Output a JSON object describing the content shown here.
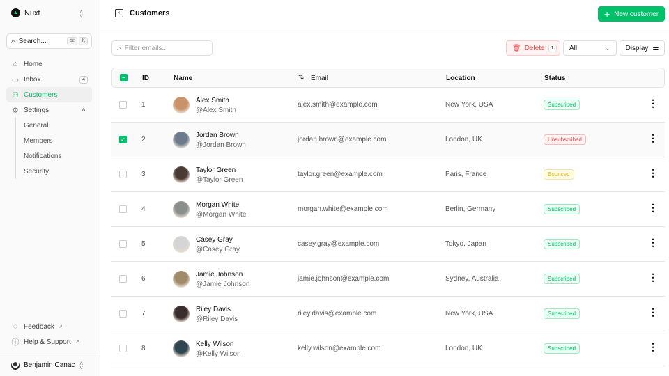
{
  "sidebar": {
    "brand": "Nuxt",
    "search": "Search...",
    "kbd": [
      "⌘",
      "K"
    ],
    "items": [
      {
        "label": "Home",
        "icon": "home-icon"
      },
      {
        "label": "Inbox",
        "icon": "inbox-icon",
        "badge": "4"
      },
      {
        "label": "Customers",
        "icon": "users-icon",
        "active": true
      },
      {
        "label": "Settings",
        "icon": "gear-icon"
      }
    ],
    "settings_children": [
      "General",
      "Members",
      "Notifications",
      "Security"
    ],
    "footer": [
      "Feedback",
      "Help & Support"
    ],
    "user": "Benjamin Canac"
  },
  "header": {
    "title": "Customers",
    "new_button": "New customer"
  },
  "toolbar": {
    "filter_placeholder": "Filter emails...",
    "delete": "Delete",
    "delete_count": "1",
    "status_select": "All",
    "display": "Display"
  },
  "table": {
    "columns": [
      "ID",
      "Name",
      "Email",
      "Location",
      "Status"
    ],
    "rows": [
      {
        "id": "1",
        "name": "Alex Smith",
        "handle": "@Alex Smith",
        "email": "alex.smith@example.com",
        "location": "New York, USA",
        "status": "Subscribed",
        "selected": false,
        "avatar": "#c9926a"
      },
      {
        "id": "2",
        "name": "Jordan Brown",
        "handle": "@Jordan Brown",
        "email": "jordan.brown@example.com",
        "location": "London, UK",
        "status": "Unsubscribed",
        "selected": true,
        "avatar": "#6b7b8c"
      },
      {
        "id": "3",
        "name": "Taylor Green",
        "handle": "@Taylor Green",
        "email": "taylor.green@example.com",
        "location": "Paris, France",
        "status": "Bounced",
        "selected": false,
        "avatar": "#4a3a35"
      },
      {
        "id": "4",
        "name": "Morgan White",
        "handle": "@Morgan White",
        "email": "morgan.white@example.com",
        "location": "Berlin, Germany",
        "status": "Subscribed",
        "selected": false,
        "avatar": "#8a8f8c"
      },
      {
        "id": "5",
        "name": "Casey Gray",
        "handle": "@Casey Gray",
        "email": "casey.gray@example.com",
        "location": "Tokyo, Japan",
        "status": "Subscribed",
        "selected": false,
        "avatar": "#d5d5d5"
      },
      {
        "id": "6",
        "name": "Jamie Johnson",
        "handle": "@Jamie Johnson",
        "email": "jamie.johnson@example.com",
        "location": "Sydney, Australia",
        "status": "Subscribed",
        "selected": false,
        "avatar": "#a08a6a"
      },
      {
        "id": "7",
        "name": "Riley Davis",
        "handle": "@Riley Davis",
        "email": "riley.davis@example.com",
        "location": "New York, USA",
        "status": "Subscribed",
        "selected": false,
        "avatar": "#3a2e2c"
      },
      {
        "id": "8",
        "name": "Kelly Wilson",
        "handle": "@Kelly Wilson",
        "email": "kelly.wilson@example.com",
        "location": "London, UK",
        "status": "Subscribed",
        "selected": false,
        "avatar": "#2f4550"
      }
    ]
  },
  "status_colors": {
    "Subscribed": "#00c16a",
    "Unsubscribed": "#ef4444",
    "Bounced": "#eab308"
  },
  "accent": "#00c16a"
}
